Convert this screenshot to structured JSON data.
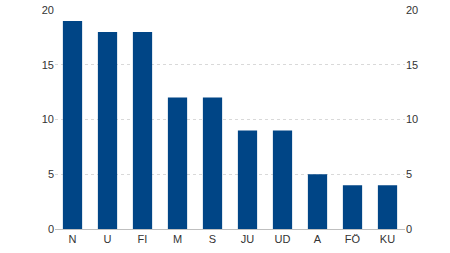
{
  "chart_data": {
    "type": "bar",
    "categories": [
      "N",
      "U",
      "FI",
      "M",
      "S",
      "JU",
      "UD",
      "A",
      "FÖ",
      "KU"
    ],
    "values": [
      19,
      18,
      18,
      12,
      12,
      9,
      9,
      5,
      4,
      4
    ],
    "color": "#004586",
    "ylim": [
      0,
      20
    ],
    "yticks": [
      0,
      5,
      10,
      15,
      20
    ],
    "grid": true
  }
}
